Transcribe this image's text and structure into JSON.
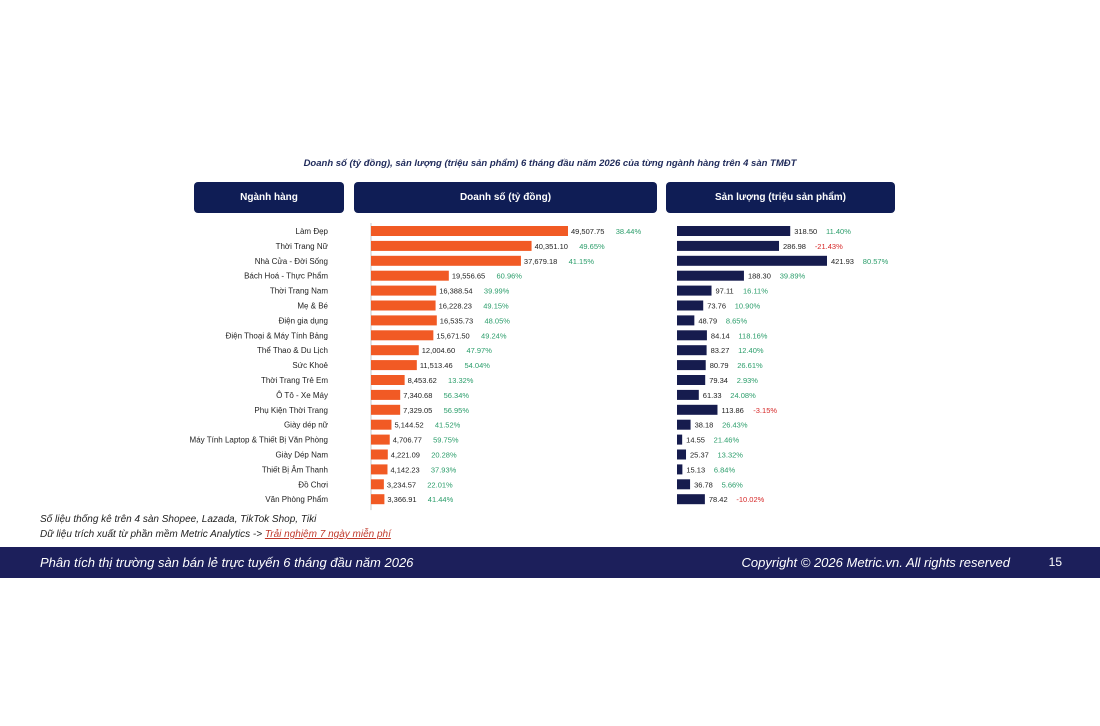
{
  "title": "Doanh số (tỷ đồng), sản lượng (triệu sản phẩm) 6 tháng đầu năm 2026 của từng ngành hàng trên 4 sàn TMĐT",
  "headers": {
    "category": "Ngành hàng",
    "revenue": "Doanh số (tỷ đồng)",
    "volume": "Sản lượng (triệu sản phẩm)"
  },
  "colors": {
    "revenue_bar": "#f15a24",
    "volume_bar": "#161c4e",
    "header_bg": "#0f1d55",
    "positive": "#2a9d6a",
    "negative": "#d62828",
    "footer_bg": "#1c1f5b"
  },
  "chart_data": {
    "type": "bar",
    "orientation": "horizontal",
    "categories": [
      "Làm Đẹp",
      "Thời Trang Nữ",
      "Nhà Cửa - Đời Sống",
      "Bách Hoá - Thực Phẩm",
      "Thời Trang Nam",
      "Mẹ & Bé",
      "Điện gia dụng",
      "Điện Thoại & Máy Tính Bảng",
      "Thể Thao & Du Lịch",
      "Sức Khoẻ",
      "Thời Trang Trẻ Em",
      "Ô Tô - Xe Máy",
      "Phụ Kiện Thời Trang",
      "Giày dép nữ",
      "Máy Tính Laptop & Thiết Bị Văn Phòng",
      "Giày Dép Nam",
      "Thiết Bị Âm Thanh",
      "Đồ Chơi",
      "Văn Phòng Phẩm"
    ],
    "series": [
      {
        "name": "Doanh số (tỷ đồng)",
        "values": [
          49507.75,
          40351.1,
          37679.18,
          19556.65,
          16388.54,
          16228.23,
          16535.73,
          15671.5,
          12004.6,
          11513.46,
          8453.62,
          7340.68,
          7329.05,
          5144.52,
          4706.77,
          4221.09,
          4142.23,
          3234.57,
          3366.91
        ],
        "labels": [
          "49,507.75",
          "40,351.10",
          "37,679.18",
          "19,556.65",
          "16,388.54",
          "16,228.23",
          "16,535.73",
          "15,671.50",
          "12,004.60",
          "11,513.46",
          "8,453.62",
          "7,340.68",
          "7,329.05",
          "5,144.52",
          "4,706.77",
          "4,221.09",
          "4,142.23",
          "3,234.57",
          "3,366.91"
        ],
        "growth": [
          "38.44%",
          "49.65%",
          "41.15%",
          "60.96%",
          "39.99%",
          "49.15%",
          "48.05%",
          "49.24%",
          "47.97%",
          "54.04%",
          "13.32%",
          "56.34%",
          "56.95%",
          "41.52%",
          "59.75%",
          "20.28%",
          "37.93%",
          "22.01%",
          "41.44%"
        ]
      },
      {
        "name": "Sản lượng (triệu sản phẩm)",
        "values": [
          318.5,
          286.98,
          421.93,
          188.3,
          97.11,
          73.76,
          48.79,
          84.14,
          83.27,
          80.79,
          79.34,
          61.33,
          113.86,
          38.18,
          14.55,
          25.37,
          15.13,
          36.78,
          78.42
        ],
        "labels": [
          "318.50",
          "286.98",
          "421.93",
          "188.30",
          "97.11",
          "73.76",
          "48.79",
          "84.14",
          "83.27",
          "80.79",
          "79.34",
          "61.33",
          "113.86",
          "38.18",
          "14.55",
          "25.37",
          "15.13",
          "36.78",
          "78.42"
        ],
        "growth": [
          "11.40%",
          "-21.43%",
          "80.57%",
          "39.89%",
          "16.11%",
          "10.90%",
          "8.65%",
          "118.16%",
          "12.40%",
          "26.61%",
          "2.93%",
          "24.08%",
          "-3.15%",
          "26.43%",
          "21.46%",
          "13.32%",
          "6.84%",
          "5.66%",
          "-10.02%"
        ]
      }
    ]
  },
  "notes": {
    "line1": "Số liệu thống kê trên 4 sàn Shopee, Lazada, TikTok Shop, Tiki",
    "line2_prefix": "Dữ liệu trích xuất từ phần mềm Metric Analytics ->",
    "link": "Trải nghiệm 7 ngày miễn phí"
  },
  "footer": {
    "left": "Phân tích thị trường sàn bán lẻ trực tuyến 6 tháng đầu năm 2026",
    "right": "Copyright © 2026 Metric.vn. All rights reserved",
    "page": "15"
  }
}
